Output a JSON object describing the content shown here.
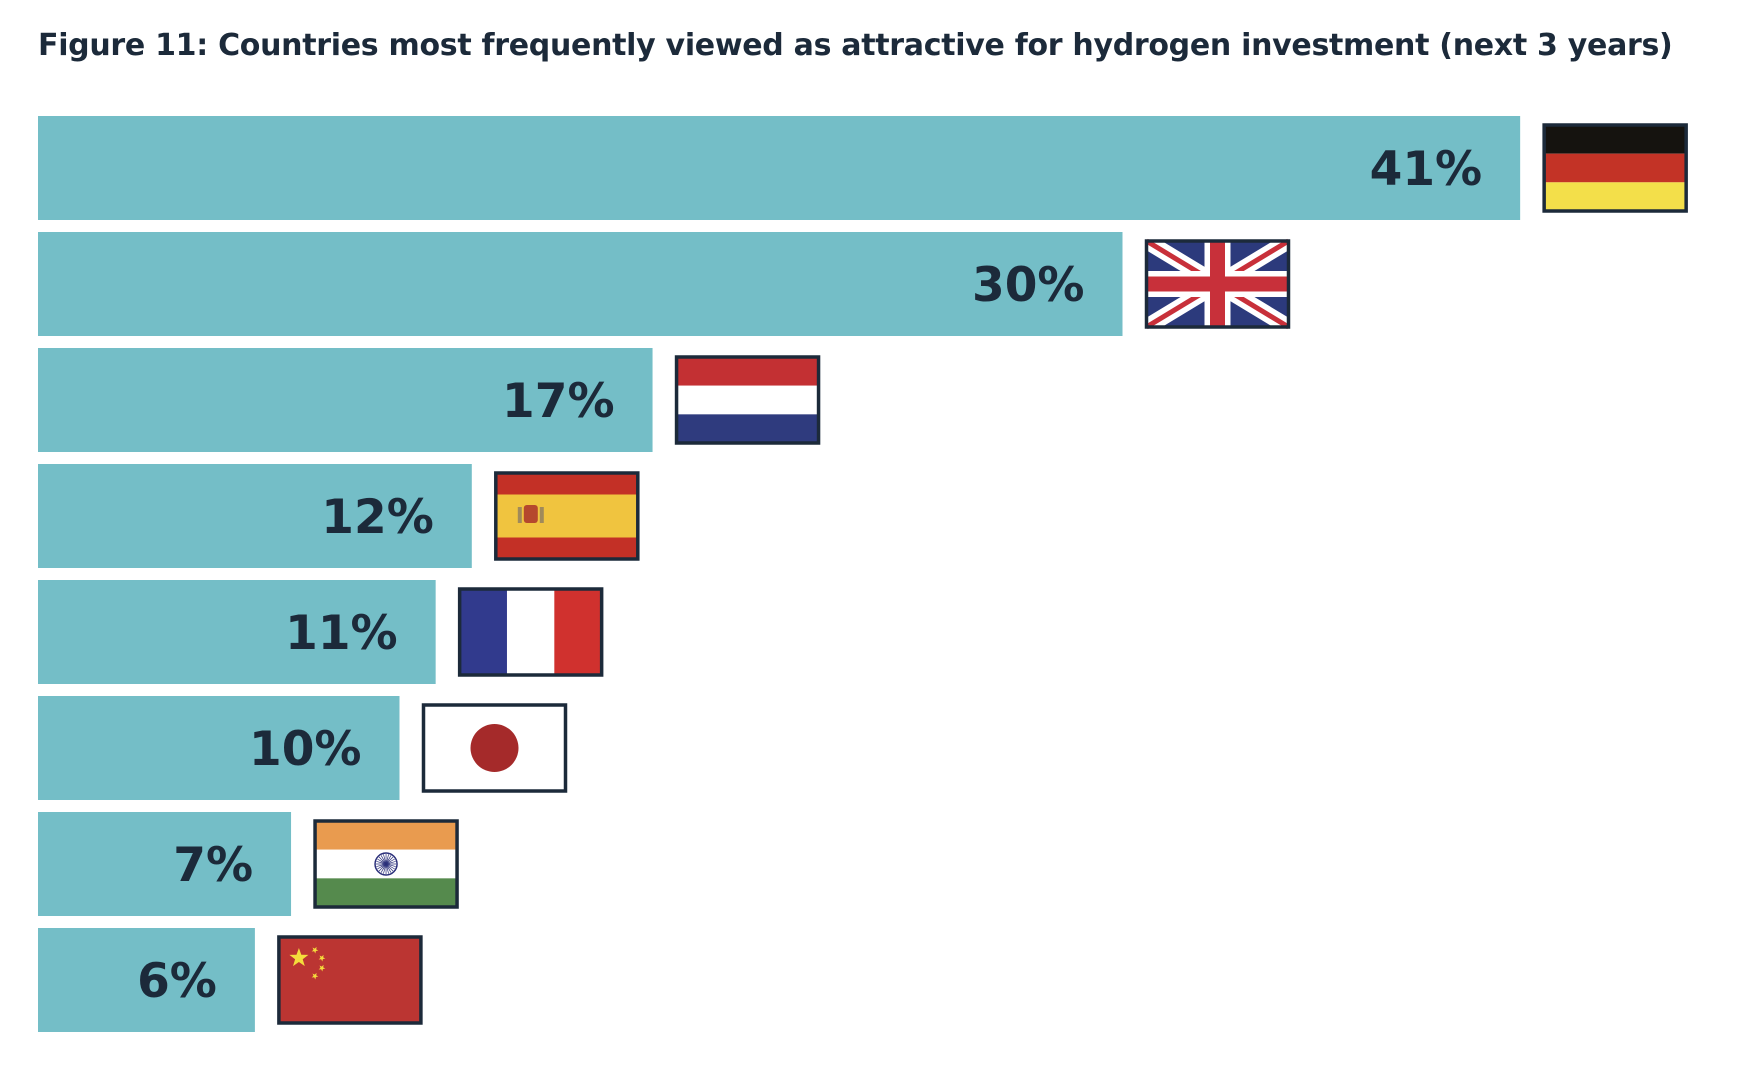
{
  "chart_data": {
    "type": "bar",
    "orientation": "horizontal",
    "title": "Figure 11: Countries most frequently viewed as attractive for hydrogen investment (next 3 years)",
    "categories": [
      "Germany",
      "United Kingdom",
      "Netherlands",
      "Spain",
      "France",
      "Japan",
      "India",
      "China"
    ],
    "category_display": "flag icons",
    "values": [
      41,
      30,
      17,
      12,
      11,
      10,
      7,
      6
    ],
    "labels": [
      "41%",
      "30%",
      "17%",
      "12%",
      "11%",
      "10%",
      "7%",
      "6%"
    ],
    "unit": "%",
    "grid": false,
    "axes_visible": false,
    "bar_color": "#74bec7",
    "label_color": "#1c2a3a"
  }
}
